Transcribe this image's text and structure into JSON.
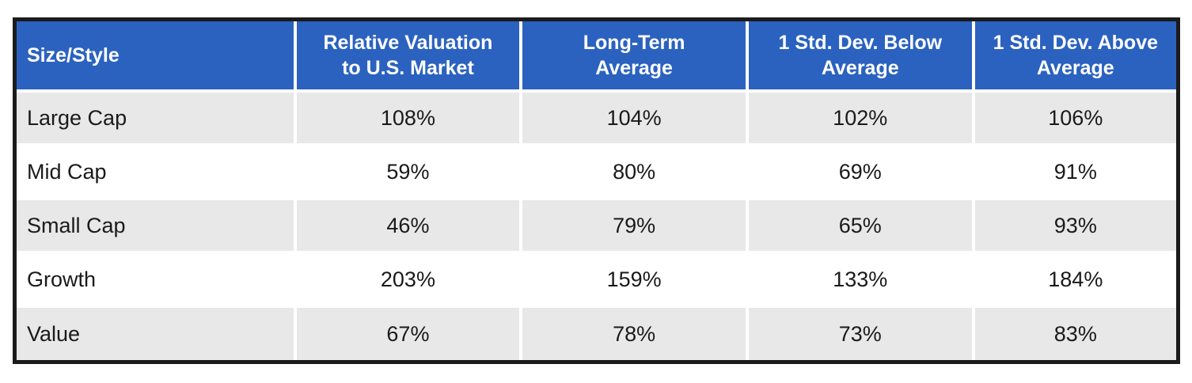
{
  "chart_data": {
    "type": "table",
    "title": "",
    "columns": [
      "Size/Style",
      "Relative Valuation to U.S. Market",
      "Long-Term Average",
      "1 Std. Dev. Below Average",
      "1 Std. Dev. Above Average"
    ],
    "rows": [
      [
        "Large Cap",
        "108%",
        "104%",
        "102%",
        "106%"
      ],
      [
        "Mid Cap",
        "59%",
        "80%",
        "69%",
        "91%"
      ],
      [
        "Small Cap",
        "46%",
        "79%",
        "65%",
        "93%"
      ],
      [
        "Growth",
        "203%",
        "159%",
        "133%",
        "184%"
      ],
      [
        "Value",
        "67%",
        "78%",
        "73%",
        "83%"
      ]
    ]
  },
  "table": {
    "headers": {
      "size_style": "Size/Style",
      "relative_valuation": "Relative Valuation\nto U.S. Market",
      "long_term": "Long-Term\nAverage",
      "below": "1 Std. Dev. Below\nAverage",
      "above": "1 Std. Dev. Above\nAverage"
    },
    "rows": [
      {
        "label": "Large Cap",
        "values": [
          "108%",
          "104%",
          "102%",
          "106%"
        ]
      },
      {
        "label": "Mid Cap",
        "values": [
          "59%",
          "80%",
          "69%",
          "91%"
        ]
      },
      {
        "label": "Small Cap",
        "values": [
          "46%",
          "79%",
          "65%",
          "93%"
        ]
      },
      {
        "label": "Growth",
        "values": [
          "203%",
          "159%",
          "133%",
          "184%"
        ]
      },
      {
        "label": "Value",
        "values": [
          "67%",
          "78%",
          "73%",
          "83%"
        ]
      }
    ]
  },
  "colors": {
    "header_bg": "#2b62bf",
    "header_text": "#ffffff",
    "row_alt_bg": "#e8e8e8",
    "row_bg": "#ffffff",
    "border": "#1b1b1b",
    "body_text": "#1a1a1a"
  }
}
